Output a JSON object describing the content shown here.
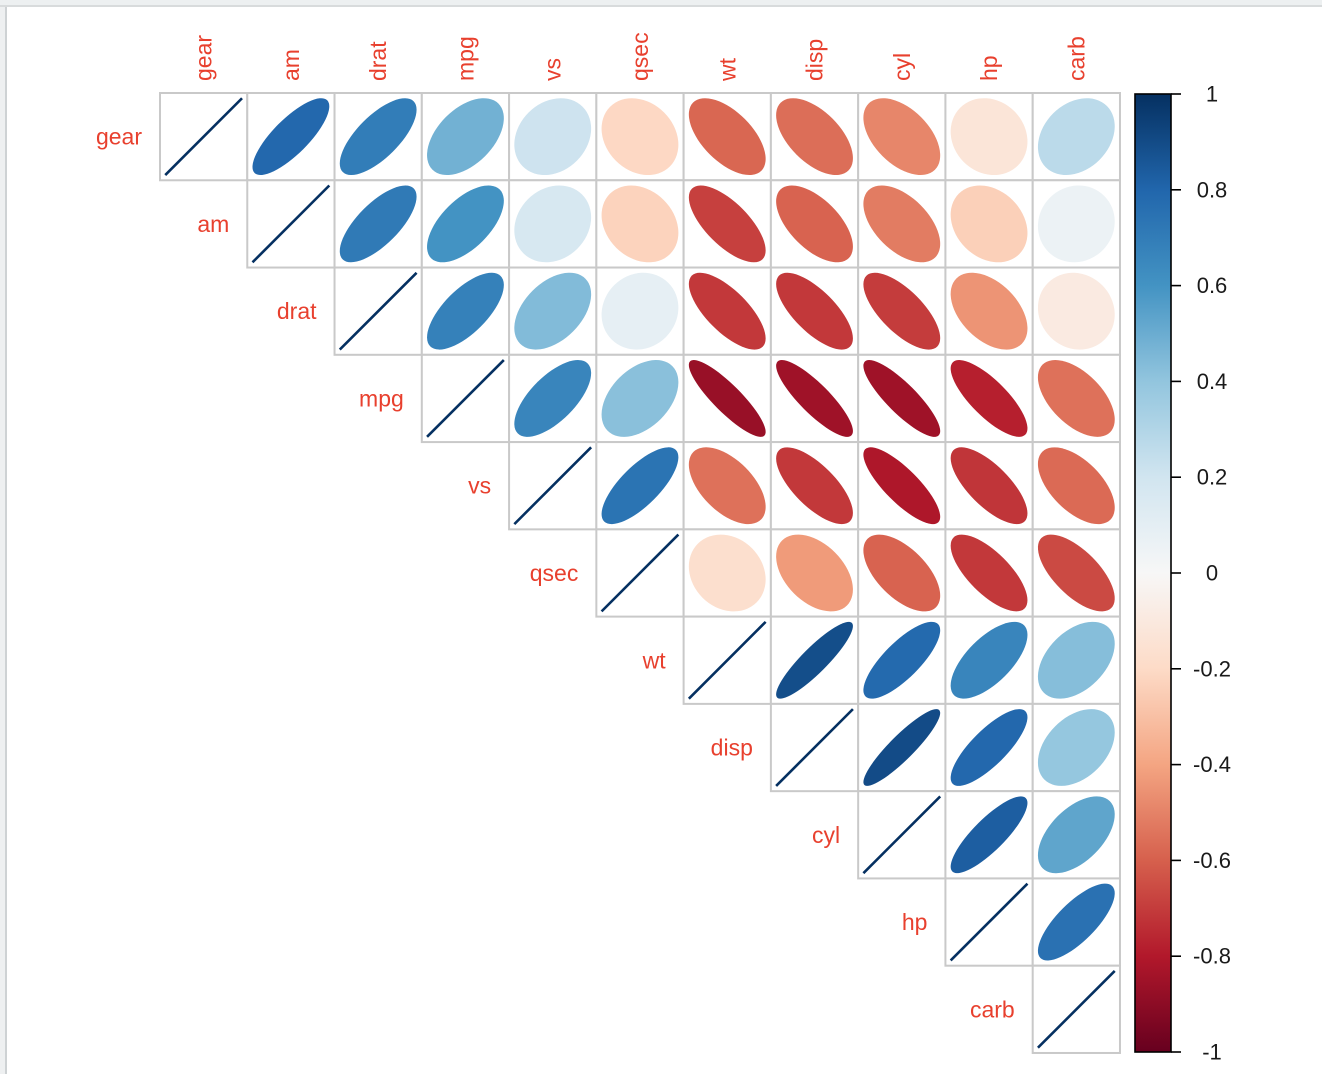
{
  "chart_data": {
    "type": "heatmap",
    "subtype": "correlation-matrix-ellipse",
    "title": "",
    "layout": "upper-triangle",
    "legend_position": "right",
    "variables": [
      "gear",
      "am",
      "drat",
      "mpg",
      "vs",
      "qsec",
      "wt",
      "disp",
      "cyl",
      "hp",
      "carb"
    ],
    "matrix_upper": [
      [
        1,
        0.79,
        0.7,
        0.48,
        0.21,
        -0.21,
        -0.58,
        -0.56,
        -0.49,
        -0.13,
        0.27
      ],
      [
        1,
        0.71,
        0.6,
        0.17,
        -0.23,
        -0.69,
        -0.59,
        -0.52,
        -0.24,
        0.06
      ],
      [
        1,
        0.68,
        0.44,
        0.09,
        -0.71,
        -0.71,
        -0.7,
        -0.45,
        -0.09
      ],
      [
        1,
        0.66,
        0.42,
        -0.87,
        -0.85,
        -0.85,
        -0.78,
        -0.55
      ],
      [
        1,
        0.74,
        -0.55,
        -0.71,
        -0.81,
        -0.72,
        -0.57
      ],
      [
        1,
        -0.17,
        -0.43,
        -0.59,
        -0.71,
        -0.66
      ],
      [
        1,
        0.89,
        0.78,
        0.66,
        0.43
      ],
      [
        1,
        0.9,
        0.79,
        0.39
      ],
      [
        1,
        0.83,
        0.53
      ],
      [
        1,
        0.75
      ],
      [
        1
      ]
    ],
    "palette_neg_to_pos": [
      "#67001F",
      "#B2182B",
      "#D6604D",
      "#F4A582",
      "#FDDBC7",
      "#F7F7F7",
      "#D1E5F0",
      "#92C5DE",
      "#4393C3",
      "#2166AC",
      "#053061"
    ],
    "label_color": "#e8402e",
    "grid_color": "#c9c9c9",
    "cell_fill": "#ffffff",
    "colorbar": {
      "min": -1,
      "max": 1,
      "ticks": [
        "1",
        "0.8",
        "0.6",
        "0.4",
        "0.2",
        "0",
        "-0.2",
        "-0.4",
        "-0.6",
        "-0.8",
        "-1"
      ],
      "border_color": "#000000",
      "tick_label_color": "#1a1a1a"
    }
  }
}
